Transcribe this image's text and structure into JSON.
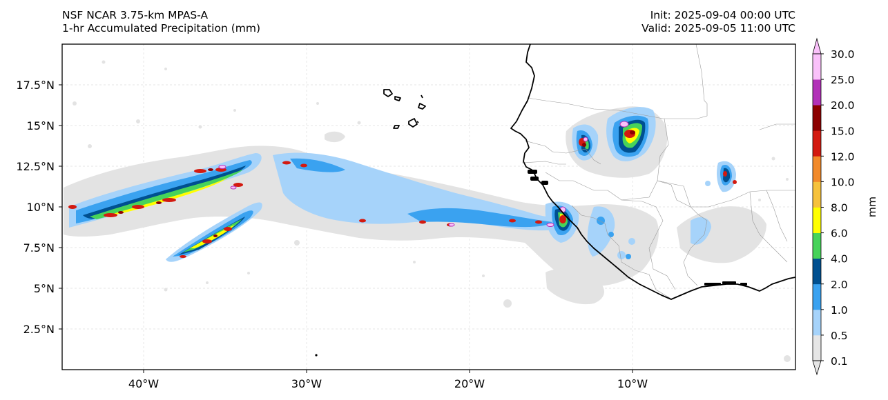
{
  "header": {
    "model": "NSF NCAR 3.75-km MPAS-A",
    "field": "1-hr Accumulated Precipitation (mm)",
    "init": "Init: 2025-09-04 00:00 UTC",
    "valid": "Valid: 2025-09-05 11:00 UTC"
  },
  "map": {
    "extent": {
      "lon": [
        -45,
        0
      ],
      "lat": [
        0,
        20
      ]
    },
    "lat_ticks": [
      {
        "value": 2.5,
        "label": "2.5°N"
      },
      {
        "value": 5,
        "label": "5°N"
      },
      {
        "value": 7.5,
        "label": "7.5°N"
      },
      {
        "value": 10,
        "label": "10°N"
      },
      {
        "value": 12.5,
        "label": "12.5°N"
      },
      {
        "value": 15,
        "label": "15°N"
      },
      {
        "value": 17.5,
        "label": "17.5°N"
      }
    ],
    "lon_ticks": [
      {
        "value": -40,
        "label": "40°W"
      },
      {
        "value": -30,
        "label": "30°W"
      },
      {
        "value": -20,
        "label": "20°W"
      },
      {
        "value": -10,
        "label": "10°W"
      }
    ],
    "gridlines": true,
    "coastline_color": "#000000",
    "border_color": "#999999"
  },
  "colorbar": {
    "unit": "mm",
    "levels": [
      "0.1",
      "0.5",
      "1.0",
      "2.0",
      "4.0",
      "6.0",
      "8.0",
      "10.0",
      "12.0",
      "15.0",
      "20.0",
      "25.0",
      "30.0"
    ],
    "colors": [
      "#e6e6e6",
      "#a6d3fa",
      "#3aa2f0",
      "#005090",
      "#47d35a",
      "#ffff00",
      "#f6c23c",
      "#f28a2a",
      "#d31a10",
      "#8c0000",
      "#b231b8",
      "#fac1fa"
    ],
    "extend": "both"
  }
}
